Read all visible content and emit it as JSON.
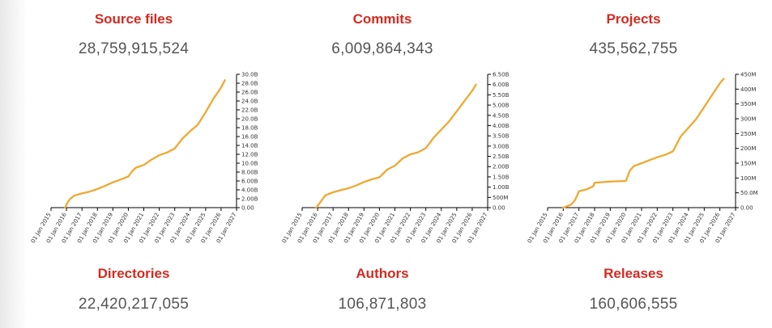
{
  "stats": {
    "source_files": {
      "label": "Source files",
      "value": "28,759,915,524"
    },
    "commits": {
      "label": "Commits",
      "value": "6,009,864,343"
    },
    "projects": {
      "label": "Projects",
      "value": "435,562,755"
    },
    "directories": {
      "label": "Directories",
      "value": "22,420,217,055"
    },
    "authors": {
      "label": "Authors",
      "value": "106,871,803"
    },
    "releases": {
      "label": "Releases",
      "value": "160,606,555"
    }
  },
  "colors": {
    "title": "#d42a20",
    "value": "#555555",
    "series": "#f0a830"
  },
  "chart_data": [
    {
      "type": "line",
      "title": "",
      "xlabel": "",
      "ylabel": "",
      "x_tick_labels": [
        "01 Jan 2015",
        "01 Jan 2016",
        "01 Jan 2017",
        "01 Jan 2018",
        "01 Jan 2019",
        "01 Jan 2020",
        "01 Jan 2021",
        "01 Jan 2022",
        "01 Jan 2023",
        "01 Jan 2024",
        "01 Jan 2025",
        "01 Jan 2026",
        "01 Jan 2027"
      ],
      "y_tick_labels": [
        "0.00",
        "2.00B",
        "4.00B",
        "6.00B",
        "8.00B",
        "10.0B",
        "12.0B",
        "14.0B",
        "16.0B",
        "18.0B",
        "20.0B",
        "22.0B",
        "24.0B",
        "26.0B",
        "28.0B",
        "30.0B"
      ],
      "ylim": [
        0,
        30000000000
      ],
      "xlim": [
        "2015-01-01",
        "2027-01-01"
      ],
      "series": [
        {
          "x": [
            "2015-12-01",
            "2016-01-15",
            "2016-04-01",
            "2016-07-01",
            "2017-01-01",
            "2017-07-01",
            "2018-01-01",
            "2018-07-01",
            "2019-01-01",
            "2019-07-01",
            "2020-01-01",
            "2020-04-01",
            "2020-07-01",
            "2021-01-01",
            "2021-07-01",
            "2022-01-01",
            "2022-07-01",
            "2023-01-01",
            "2023-07-01",
            "2024-01-01",
            "2024-07-01",
            "2025-01-01",
            "2025-07-01",
            "2026-01-01",
            "2026-04-01"
          ],
          "y": [
            0,
            1000000000,
            2000000000,
            2700000000,
            3200000000,
            3600000000,
            4200000000,
            4900000000,
            5700000000,
            6300000000,
            7000000000,
            8200000000,
            9000000000,
            9600000000,
            10800000000,
            11800000000,
            12400000000,
            13300000000,
            15500000000,
            17200000000,
            18700000000,
            21500000000,
            24500000000,
            27000000000,
            28700000000
          ]
        }
      ]
    },
    {
      "type": "line",
      "title": "",
      "xlabel": "",
      "ylabel": "",
      "x_tick_labels": [
        "01 Jan 2015",
        "01 Jan 2016",
        "01 Jan 2017",
        "01 Jan 2018",
        "01 Jan 2019",
        "01 Jan 2020",
        "01 Jan 2021",
        "01 Jan 2022",
        "01 Jan 2023",
        "01 Jan 2024",
        "01 Jan 2025",
        "01 Jan 2026",
        "01 Jan 2027"
      ],
      "y_tick_labels": [
        "0.00",
        "500M",
        "1.00B",
        "1.50B",
        "2.00B",
        "2.50B",
        "3.00B",
        "3.50B",
        "4.00B",
        "4.50B",
        "5.00B",
        "5.50B",
        "6.00B",
        "6.50B"
      ],
      "ylim": [
        0,
        6500000000
      ],
      "xlim": [
        "2015-01-01",
        "2027-01-01"
      ],
      "series": [
        {
          "x": [
            "2015-12-01",
            "2016-07-01",
            "2017-01-01",
            "2017-07-01",
            "2018-01-01",
            "2018-07-01",
            "2019-01-01",
            "2019-07-01",
            "2020-01-01",
            "2020-07-01",
            "2021-01-01",
            "2021-07-01",
            "2022-01-01",
            "2022-07-01",
            "2023-01-01",
            "2023-07-01",
            "2024-01-01",
            "2024-07-01",
            "2025-01-01",
            "2025-07-01",
            "2026-01-01",
            "2026-04-01"
          ],
          "y": [
            0,
            600000000,
            750000000,
            850000000,
            950000000,
            1080000000,
            1250000000,
            1380000000,
            1480000000,
            1850000000,
            2050000000,
            2400000000,
            2600000000,
            2700000000,
            2900000000,
            3400000000,
            3800000000,
            4200000000,
            4700000000,
            5200000000,
            5700000000,
            6000000000
          ]
        }
      ]
    },
    {
      "type": "line",
      "title": "",
      "xlabel": "",
      "ylabel": "",
      "x_tick_labels": [
        "01 Jan 2015",
        "01 Jan 2016",
        "01 Jan 2017",
        "01 Jan 2018",
        "01 Jan 2019",
        "01 Jan 2020",
        "01 Jan 2021",
        "01 Jan 2022",
        "01 Jan 2023",
        "01 Jan 2024",
        "01 Jan 2025",
        "01 Jan 2026",
        "01 Jan 2027"
      ],
      "y_tick_labels": [
        "0.00",
        "50.0M",
        "100M",
        "150M",
        "200M",
        "250M",
        "300M",
        "350M",
        "400M",
        "450M"
      ],
      "ylim": [
        0,
        450000000
      ],
      "xlim": [
        "2015-01-01",
        "2027-01-01"
      ],
      "series": [
        {
          "x": [
            "2016-01-01",
            "2016-07-01",
            "2016-10-01",
            "2017-01-01",
            "2017-07-01",
            "2017-12-01",
            "2018-01-01",
            "2018-07-01",
            "2019-01-01",
            "2019-07-01",
            "2020-01-01",
            "2020-04-01",
            "2020-07-01",
            "2021-01-01",
            "2021-07-01",
            "2022-01-01",
            "2022-07-01",
            "2023-01-01",
            "2023-07-01",
            "2024-01-01",
            "2024-07-01",
            "2025-01-01",
            "2025-07-01",
            "2026-01-01",
            "2026-04-01"
          ],
          "y": [
            0,
            10000000,
            25000000,
            55000000,
            62000000,
            72000000,
            84000000,
            86000000,
            88000000,
            89000000,
            90000000,
            125000000,
            140000000,
            150000000,
            160000000,
            170000000,
            178000000,
            190000000,
            240000000,
            270000000,
            300000000,
            340000000,
            380000000,
            420000000,
            435000000
          ]
        }
      ]
    }
  ]
}
